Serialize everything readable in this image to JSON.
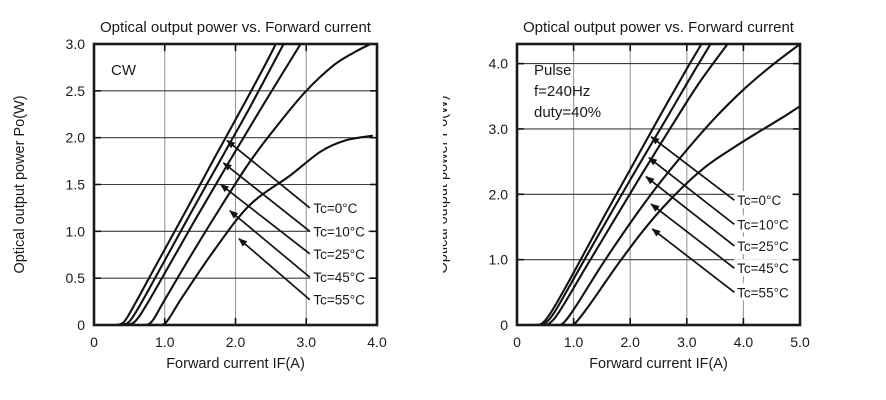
{
  "page": {
    "background": "#ffffff",
    "text_color": "#1a1a1a"
  },
  "chart_data": [
    {
      "type": "line",
      "title": "Optical output power vs. Forward current",
      "xlabel": "Forward current IF(A)",
      "ylabel": "Optical output power Po(W)",
      "inset_lines": [
        "CW"
      ],
      "xlim": [
        0,
        4.0
      ],
      "ylim": [
        0,
        3.0
      ],
      "xticks": [
        {
          "v": 0,
          "label": "0"
        },
        {
          "v": 1,
          "label": "1.0"
        },
        {
          "v": 2,
          "label": "2.0"
        },
        {
          "v": 3,
          "label": "3.0"
        },
        {
          "v": 4,
          "label": "4.0"
        }
      ],
      "yticks": [
        {
          "v": 0,
          "label": "0"
        },
        {
          "v": 0.5,
          "label": "0.5"
        },
        {
          "v": 1,
          "label": "1.0"
        },
        {
          "v": 1.5,
          "label": "1.5"
        },
        {
          "v": 2,
          "label": "2.0"
        },
        {
          "v": 2.5,
          "label": "2.5"
        },
        {
          "v": 3,
          "label": "3.0"
        }
      ],
      "x_gridlines": [
        1,
        2,
        3
      ],
      "y_gridlines": [
        0.5,
        1.0,
        1.5,
        2.0,
        2.5
      ],
      "grid_v_color": "#9a9a9a",
      "grid_h_color": "#3c3c3c",
      "curve_color": "#111111",
      "legend_pos": "inside-right",
      "series": [
        {
          "name": "Tc=0°C",
          "points": [
            [
              0.3,
              0
            ],
            [
              0.42,
              0.03
            ],
            [
              0.56,
              0.2
            ],
            [
              0.85,
              0.6
            ],
            [
              1.25,
              1.15
            ],
            [
              1.7,
              1.78
            ],
            [
              2.1,
              2.33
            ],
            [
              2.4,
              2.75
            ],
            [
              2.57,
              3.0
            ]
          ]
        },
        {
          "name": "Tc=10°C",
          "points": [
            [
              0.36,
              0
            ],
            [
              0.49,
              0.03
            ],
            [
              0.64,
              0.2
            ],
            [
              0.95,
              0.62
            ],
            [
              1.35,
              1.17
            ],
            [
              1.8,
              1.78
            ],
            [
              2.2,
              2.32
            ],
            [
              2.68,
              3.0
            ]
          ]
        },
        {
          "name": "Tc=25°C",
          "points": [
            [
              0.44,
              0
            ],
            [
              0.57,
              0.03
            ],
            [
              0.73,
              0.2
            ],
            [
              1.05,
              0.62
            ],
            [
              1.45,
              1.15
            ],
            [
              1.9,
              1.73
            ],
            [
              2.4,
              2.36
            ],
            [
              2.92,
              3.0
            ]
          ]
        },
        {
          "name": "Tc=45°C",
          "points": [
            [
              0.66,
              0
            ],
            [
              0.81,
              0.03
            ],
            [
              1.0,
              0.27
            ],
            [
              1.4,
              0.78
            ],
            [
              1.8,
              1.27
            ],
            [
              2.2,
              1.74
            ],
            [
              2.6,
              2.14
            ],
            [
              3.0,
              2.5
            ],
            [
              3.4,
              2.78
            ],
            [
              3.7,
              2.92
            ],
            [
              3.91,
              3.0
            ]
          ]
        },
        {
          "name": "Tc=55°C",
          "points": [
            [
              0.88,
              0
            ],
            [
              1.02,
              0.03
            ],
            [
              1.25,
              0.3
            ],
            [
              1.7,
              0.8
            ],
            [
              2.2,
              1.28
            ],
            [
              2.78,
              1.6
            ],
            [
              3.2,
              1.85
            ],
            [
              3.55,
              1.97
            ],
            [
              3.93,
              2.02
            ]
          ]
        }
      ],
      "legend": [
        {
          "label": "Tc=0°C",
          "label_at": [
            3.1,
            1.25
          ],
          "arrow_tail": [
            3.05,
            1.25
          ],
          "arrow_head": [
            1.88,
            1.97
          ]
        },
        {
          "label": "Tc=10°C",
          "label_at": [
            3.1,
            1.0
          ],
          "arrow_tail": [
            3.05,
            1.0
          ],
          "arrow_head": [
            1.83,
            1.73
          ]
        },
        {
          "label": "Tc=25°C",
          "label_at": [
            3.1,
            0.76
          ],
          "arrow_tail": [
            3.05,
            0.76
          ],
          "arrow_head": [
            1.79,
            1.5
          ]
        },
        {
          "label": "Tc=45°C",
          "label_at": [
            3.1,
            0.51
          ],
          "arrow_tail": [
            3.05,
            0.51
          ],
          "arrow_head": [
            1.92,
            1.22
          ]
        },
        {
          "label": "Tc=55°C",
          "label_at": [
            3.1,
            0.27
          ],
          "arrow_tail": [
            3.05,
            0.27
          ],
          "arrow_head": [
            2.05,
            0.92
          ]
        }
      ]
    },
    {
      "type": "line",
      "title": "Optical output power vs. Forward current",
      "xlabel": "Forward current IF(A)",
      "ylabel": "Optical output power Po(W)",
      "inset_lines": [
        "Pulse",
        "f=240Hz",
        "duty=40%"
      ],
      "xlim": [
        0,
        5.0
      ],
      "ylim": [
        0,
        4.3
      ],
      "xticks": [
        {
          "v": 0,
          "label": "0"
        },
        {
          "v": 1,
          "label": "1.0"
        },
        {
          "v": 2,
          "label": "2.0"
        },
        {
          "v": 3,
          "label": "3.0"
        },
        {
          "v": 4,
          "label": "4.0"
        },
        {
          "v": 5,
          "label": "5.0"
        }
      ],
      "yticks": [
        {
          "v": 0,
          "label": "0"
        },
        {
          "v": 1,
          "label": "1.0"
        },
        {
          "v": 2,
          "label": "2.0"
        },
        {
          "v": 3,
          "label": "3.0"
        },
        {
          "v": 4,
          "label": "4.0"
        }
      ],
      "x_gridlines": [
        1,
        2,
        3,
        4
      ],
      "y_gridlines": [
        1.0,
        2.0,
        3.0,
        4.0
      ],
      "grid_v_color": "#9a9a9a",
      "grid_h_color": "#3c3c3c",
      "curve_color": "#111111",
      "legend_pos": "inside-right",
      "series": [
        {
          "name": "Tc=0°C",
          "points": [
            [
              0.32,
              0
            ],
            [
              0.45,
              0.03
            ],
            [
              0.62,
              0.22
            ],
            [
              1.0,
              0.8
            ],
            [
              1.5,
              1.6
            ],
            [
              2.0,
              2.38
            ],
            [
              2.5,
              3.16
            ],
            [
              3.0,
              3.92
            ],
            [
              3.26,
              4.3
            ]
          ]
        },
        {
          "name": "Tc=10°C",
          "points": [
            [
              0.37,
              0
            ],
            [
              0.5,
              0.03
            ],
            [
              0.68,
              0.22
            ],
            [
              1.1,
              0.86
            ],
            [
              1.6,
              1.62
            ],
            [
              2.1,
              2.37
            ],
            [
              2.6,
              3.1
            ],
            [
              3.1,
              3.84
            ],
            [
              3.42,
              4.3
            ]
          ]
        },
        {
          "name": "Tc=25°C",
          "points": [
            [
              0.45,
              0
            ],
            [
              0.58,
              0.03
            ],
            [
              0.76,
              0.22
            ],
            [
              1.2,
              0.86
            ],
            [
              1.7,
              1.58
            ],
            [
              2.2,
              2.3
            ],
            [
              2.7,
              3.0
            ],
            [
              3.2,
              3.68
            ],
            [
              3.72,
              4.3
            ]
          ]
        },
        {
          "name": "Tc=45°C",
          "points": [
            [
              0.68,
              0
            ],
            [
              0.82,
              0.03
            ],
            [
              1.05,
              0.3
            ],
            [
              1.5,
              0.92
            ],
            [
              2.0,
              1.56
            ],
            [
              2.5,
              2.15
            ],
            [
              3.0,
              2.68
            ],
            [
              3.5,
              3.17
            ],
            [
              4.0,
              3.6
            ],
            [
              4.5,
              3.97
            ],
            [
              4.97,
              4.28
            ]
          ]
        },
        {
          "name": "Tc=55°C",
          "points": [
            [
              0.9,
              0
            ],
            [
              1.03,
              0.03
            ],
            [
              1.3,
              0.33
            ],
            [
              1.8,
              0.95
            ],
            [
              2.3,
              1.52
            ],
            [
              2.8,
              2.0
            ],
            [
              3.3,
              2.4
            ],
            [
              3.8,
              2.7
            ],
            [
              4.3,
              2.97
            ],
            [
              4.7,
              3.18
            ],
            [
              5.0,
              3.35
            ]
          ]
        }
      ],
      "legend": [
        {
          "label": "Tc=0°C",
          "label_at": [
            3.89,
            1.91
          ],
          "arrow_tail": [
            3.84,
            1.91
          ],
          "arrow_head": [
            2.37,
            2.88
          ]
        },
        {
          "label": "Tc=10°C",
          "label_at": [
            3.89,
            1.54
          ],
          "arrow_tail": [
            3.84,
            1.54
          ],
          "arrow_head": [
            2.33,
            2.56
          ]
        },
        {
          "label": "Tc=25°C",
          "label_at": [
            3.89,
            1.21
          ],
          "arrow_tail": [
            3.84,
            1.21
          ],
          "arrow_head": [
            2.28,
            2.27
          ]
        },
        {
          "label": "Tc=45°C",
          "label_at": [
            3.89,
            0.87
          ],
          "arrow_tail": [
            3.84,
            0.87
          ],
          "arrow_head": [
            2.37,
            1.85
          ]
        },
        {
          "label": "Tc=55°C",
          "label_at": [
            3.89,
            0.5
          ],
          "arrow_tail": [
            3.84,
            0.5
          ],
          "arrow_head": [
            2.39,
            1.47
          ]
        }
      ]
    }
  ]
}
